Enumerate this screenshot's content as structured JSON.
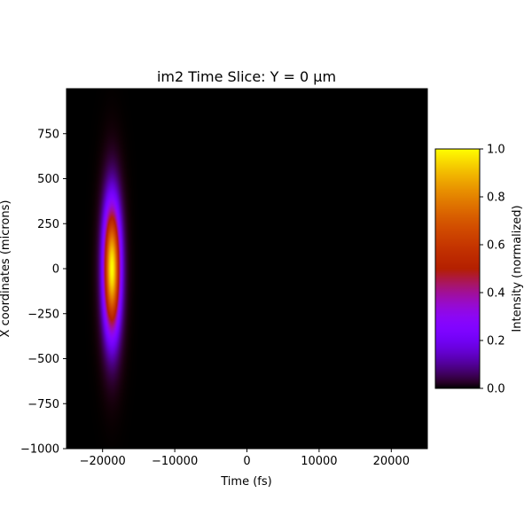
{
  "chart_data": {
    "type": "heatmap",
    "title": "im2 Time Slice: Y = 0 µm",
    "xlabel": "Time (fs)",
    "ylabel": "X coordinates (microns)",
    "xlim": [
      -25000,
      25000
    ],
    "ylim": [
      -1000,
      1000
    ],
    "x_ticks": [
      {
        "value": -20000,
        "label": "−20000"
      },
      {
        "value": -10000,
        "label": "−10000"
      },
      {
        "value": 0,
        "label": "0"
      },
      {
        "value": 10000,
        "label": "10000"
      },
      {
        "value": 20000,
        "label": "20000"
      }
    ],
    "y_ticks": [
      {
        "value": 750,
        "label": "750"
      },
      {
        "value": 500,
        "label": "500"
      },
      {
        "value": 250,
        "label": "250"
      },
      {
        "value": 0,
        "label": "0"
      },
      {
        "value": -250,
        "label": "−250"
      },
      {
        "value": -500,
        "label": "−500"
      },
      {
        "value": -750,
        "label": "−750"
      },
      {
        "value": -1000,
        "label": "−1000"
      }
    ],
    "pulse": {
      "center_time_fs": -18700,
      "center_x_um": 0,
      "peak_intensity": 1.0,
      "sigma_time_fs": 800,
      "sigma_x_um": 240
    },
    "colormap": "gnuplot",
    "colorbar": {
      "label": "Intensity (normalized)",
      "range": [
        0.0,
        1.0
      ],
      "ticks": [
        {
          "value": 0.0,
          "label": "0.0"
        },
        {
          "value": 0.2,
          "label": "0.2"
        },
        {
          "value": 0.4,
          "label": "0.4"
        },
        {
          "value": 0.6,
          "label": "0.6"
        },
        {
          "value": 0.8,
          "label": "0.8"
        },
        {
          "value": 1.0,
          "label": "1.0"
        }
      ]
    },
    "grid": false
  }
}
